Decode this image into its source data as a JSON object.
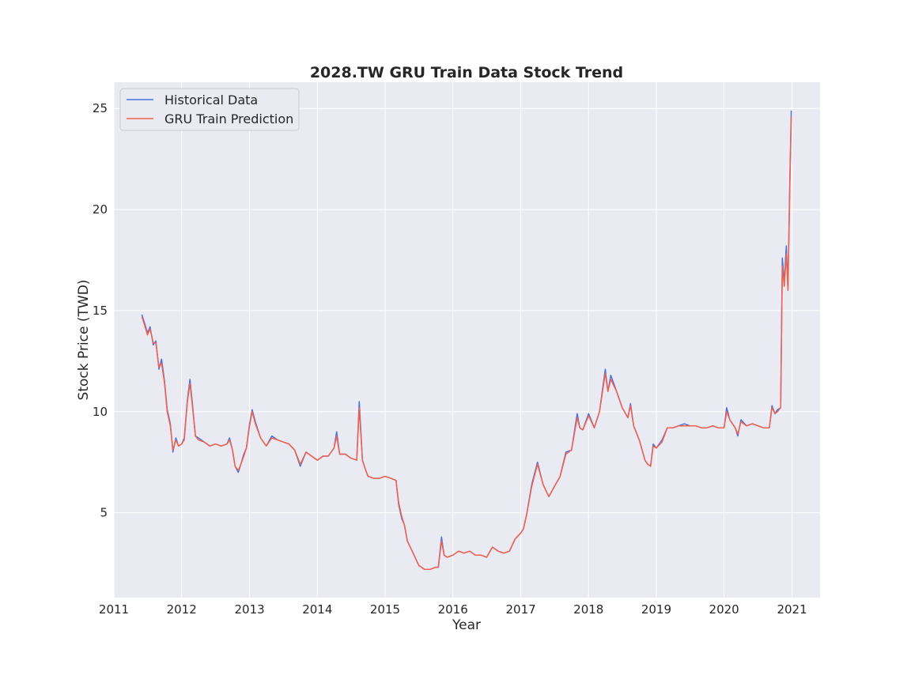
{
  "chart_data": {
    "type": "line",
    "title": "2028.TW  GRU Train Data Stock Trend",
    "xlabel": "Year",
    "ylabel": "Stock Price (TWD)",
    "x_ticks": [
      "2011",
      "2012",
      "2013",
      "2014",
      "2015",
      "2016",
      "2017",
      "2018",
      "2019",
      "2020",
      "2021"
    ],
    "y_ticks": [
      5,
      10,
      15,
      20,
      25
    ],
    "xlim": [
      "2011-01-01",
      "2021-06-01"
    ],
    "ylim": [
      0.8,
      26.3
    ],
    "grid": true,
    "background": "#eaeaf2",
    "legend_position": "top-left",
    "x": [
      "2011-06-01",
      "2011-06-15",
      "2011-07-01",
      "2011-07-15",
      "2011-08-01",
      "2011-08-15",
      "2011-09-01",
      "2011-09-15",
      "2011-10-01",
      "2011-10-15",
      "2011-11-01",
      "2011-11-15",
      "2011-12-01",
      "2011-12-15",
      "2012-01-01",
      "2012-01-15",
      "2012-02-01",
      "2012-02-15",
      "2012-03-01",
      "2012-03-15",
      "2012-04-01",
      "2012-05-01",
      "2012-06-01",
      "2012-07-01",
      "2012-08-01",
      "2012-09-01",
      "2012-09-15",
      "2012-10-01",
      "2012-10-15",
      "2012-11-01",
      "2012-11-15",
      "2012-12-01",
      "2012-12-15",
      "2013-01-01",
      "2013-01-15",
      "2013-02-01",
      "2013-03-01",
      "2013-04-01",
      "2013-05-01",
      "2013-06-01",
      "2013-07-01",
      "2013-08-01",
      "2013-09-01",
      "2013-10-01",
      "2013-11-01",
      "2013-12-01",
      "2014-01-01",
      "2014-02-01",
      "2014-03-01",
      "2014-04-01",
      "2014-04-15",
      "2014-05-01",
      "2014-06-01",
      "2014-07-01",
      "2014-08-01",
      "2014-08-15",
      "2014-09-01",
      "2014-09-15",
      "2014-10-01",
      "2014-11-01",
      "2014-12-01",
      "2015-01-01",
      "2015-02-01",
      "2015-03-01",
      "2015-03-15",
      "2015-04-01",
      "2015-04-15",
      "2015-05-01",
      "2015-06-01",
      "2015-07-01",
      "2015-08-01",
      "2015-09-01",
      "2015-10-01",
      "2015-10-15",
      "2015-11-01",
      "2015-11-15",
      "2015-12-01",
      "2016-01-01",
      "2016-02-01",
      "2016-03-01",
      "2016-04-01",
      "2016-05-01",
      "2016-06-01",
      "2016-07-01",
      "2016-08-01",
      "2016-09-01",
      "2016-10-01",
      "2016-11-01",
      "2016-12-01",
      "2017-01-01",
      "2017-01-15",
      "2017-02-01",
      "2017-03-01",
      "2017-04-01",
      "2017-05-01",
      "2017-06-01",
      "2017-07-01",
      "2017-08-01",
      "2017-09-01",
      "2017-10-01",
      "2017-11-01",
      "2017-11-15",
      "2017-12-01",
      "2018-01-01",
      "2018-02-01",
      "2018-03-01",
      "2018-04-01",
      "2018-04-15",
      "2018-05-01",
      "2018-06-01",
      "2018-07-01",
      "2018-08-01",
      "2018-08-15",
      "2018-09-01",
      "2018-10-01",
      "2018-11-01",
      "2018-11-15",
      "2018-12-01",
      "2018-12-15",
      "2019-01-01",
      "2019-02-01",
      "2019-03-01",
      "2019-04-01",
      "2019-05-01",
      "2019-06-01",
      "2019-07-01",
      "2019-08-01",
      "2019-09-01",
      "2019-10-01",
      "2019-11-01",
      "2019-12-01",
      "2020-01-01",
      "2020-01-15",
      "2020-02-01",
      "2020-03-01",
      "2020-03-15",
      "2020-04-01",
      "2020-05-01",
      "2020-06-01",
      "2020-07-01",
      "2020-08-01",
      "2020-09-01",
      "2020-09-15",
      "2020-10-01",
      "2020-10-15",
      "2020-11-01",
      "2020-11-10",
      "2020-11-20",
      "2020-12-01",
      "2020-12-10",
      "2020-12-20",
      "2020-12-28"
    ],
    "series": [
      {
        "name": "Historical Data",
        "color": "#4c6fe0",
        "values": [
          14.8,
          14.4,
          13.9,
          14.2,
          13.3,
          13.5,
          12.1,
          12.6,
          11.5,
          10.1,
          9.4,
          8.0,
          8.7,
          8.3,
          8.4,
          8.7,
          10.6,
          11.6,
          10.2,
          8.8,
          8.7,
          8.5,
          8.3,
          8.4,
          8.3,
          8.4,
          8.7,
          8.1,
          7.3,
          7.0,
          7.4,
          7.9,
          8.2,
          9.4,
          10.1,
          9.5,
          8.7,
          8.3,
          8.8,
          8.6,
          8.5,
          8.4,
          8.1,
          7.3,
          8.0,
          7.8,
          7.6,
          7.8,
          7.8,
          8.2,
          9.0,
          7.9,
          7.9,
          7.7,
          7.6,
          10.5,
          7.6,
          7.2,
          6.8,
          6.7,
          6.7,
          6.8,
          6.7,
          6.6,
          5.4,
          4.7,
          4.4,
          3.6,
          3.0,
          2.4,
          2.2,
          2.2,
          2.3,
          2.3,
          3.8,
          2.9,
          2.8,
          2.9,
          3.1,
          3.0,
          3.1,
          2.9,
          2.9,
          2.8,
          3.3,
          3.1,
          3.0,
          3.1,
          3.7,
          4.0,
          4.2,
          4.9,
          6.4,
          7.5,
          6.4,
          5.8,
          6.3,
          6.8,
          8.0,
          8.1,
          9.9,
          9.2,
          9.1,
          9.9,
          9.2,
          10.0,
          12.1,
          11.0,
          11.8,
          11.0,
          10.2,
          9.7,
          10.4,
          9.3,
          8.6,
          7.6,
          7.4,
          7.3,
          8.4,
          8.2,
          8.6,
          9.2,
          9.2,
          9.3,
          9.4,
          9.3,
          9.3,
          9.2,
          9.2,
          9.3,
          9.2,
          9.2,
          10.2,
          9.6,
          9.2,
          8.8,
          9.6,
          9.3,
          9.4,
          9.3,
          9.2,
          9.2,
          10.3,
          9.9,
          10.1,
          10.2,
          17.6,
          16.4,
          18.2,
          16.1,
          21.3,
          24.9
        ]
      },
      {
        "name": "GRU Train Prediction",
        "color": "#f2624a",
        "values": [
          14.7,
          14.3,
          13.8,
          14.1,
          13.4,
          13.4,
          12.2,
          12.4,
          11.4,
          10.0,
          9.3,
          8.1,
          8.6,
          8.3,
          8.4,
          8.6,
          10.5,
          11.4,
          10.1,
          8.8,
          8.6,
          8.5,
          8.3,
          8.4,
          8.3,
          8.4,
          8.6,
          8.1,
          7.3,
          7.1,
          7.4,
          7.8,
          8.2,
          9.3,
          10.0,
          9.4,
          8.7,
          8.3,
          8.7,
          8.6,
          8.5,
          8.4,
          8.1,
          7.4,
          8.0,
          7.8,
          7.6,
          7.8,
          7.8,
          8.2,
          8.8,
          7.9,
          7.9,
          7.7,
          7.6,
          10.2,
          7.6,
          7.2,
          6.8,
          6.7,
          6.7,
          6.8,
          6.7,
          6.6,
          5.5,
          4.8,
          4.4,
          3.6,
          3.0,
          2.4,
          2.2,
          2.2,
          2.3,
          2.3,
          3.6,
          2.9,
          2.8,
          2.9,
          3.1,
          3.0,
          3.1,
          2.9,
          2.9,
          2.8,
          3.3,
          3.1,
          3.0,
          3.1,
          3.7,
          4.0,
          4.2,
          4.9,
          6.3,
          7.4,
          6.4,
          5.8,
          6.3,
          6.8,
          7.9,
          8.1,
          9.7,
          9.2,
          9.1,
          9.8,
          9.2,
          10.0,
          11.9,
          11.0,
          11.6,
          11.0,
          10.2,
          9.7,
          10.3,
          9.3,
          8.6,
          7.6,
          7.4,
          7.3,
          8.3,
          8.2,
          8.5,
          9.2,
          9.2,
          9.3,
          9.3,
          9.3,
          9.3,
          9.2,
          9.2,
          9.3,
          9.2,
          9.2,
          10.0,
          9.6,
          9.2,
          8.9,
          9.5,
          9.3,
          9.4,
          9.3,
          9.2,
          9.2,
          10.2,
          9.9,
          10.0,
          10.2,
          17.2,
          16.2,
          17.8,
          16.0,
          21.0,
          24.6
        ]
      }
    ]
  }
}
